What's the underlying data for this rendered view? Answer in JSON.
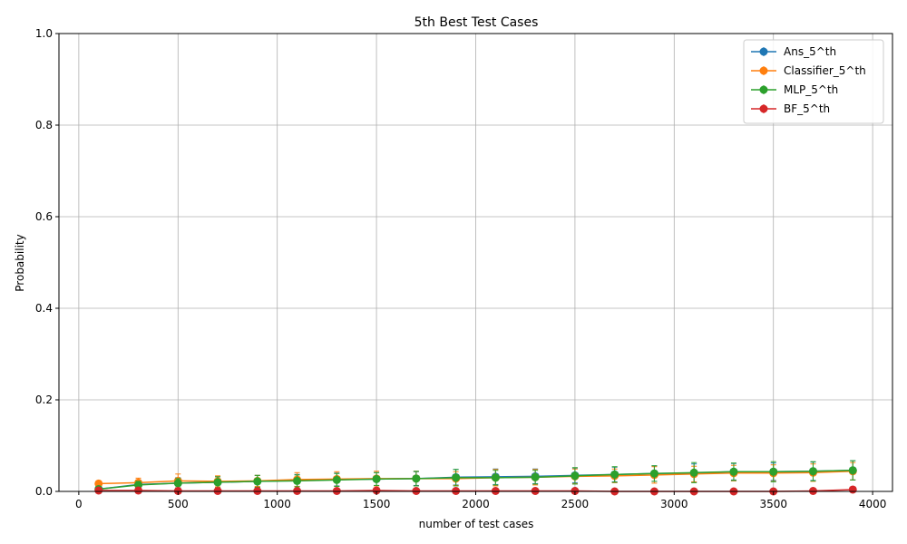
{
  "chart_data": {
    "type": "line",
    "title": "5th Best Test Cases",
    "xlabel": "number of test cases",
    "ylabel": "Probability",
    "xlim": [
      -100,
      4100
    ],
    "ylim": [
      0,
      1.0
    ],
    "xticks": [
      0,
      500,
      1000,
      1500,
      2000,
      2500,
      3000,
      3500,
      4000
    ],
    "yticks": [
      0.0,
      0.2,
      0.4,
      0.6,
      0.8,
      1.0
    ],
    "xtick_labels": [
      "0",
      "500",
      "1000",
      "1500",
      "2000",
      "2500",
      "3000",
      "3500",
      "4000"
    ],
    "ytick_labels": [
      "0.0",
      "0.2",
      "0.4",
      "0.6",
      "0.8",
      "1.0"
    ],
    "grid": true,
    "legend_position": "top-right",
    "x": [
      100,
      300,
      500,
      700,
      900,
      1100,
      1300,
      1500,
      1700,
      1900,
      2100,
      2300,
      2500,
      2700,
      2900,
      3100,
      3300,
      3500,
      3700,
      3900
    ],
    "series": [
      {
        "name": "Ans_5^th",
        "color": "#1f77b4",
        "values": [
          0.005,
          0.015,
          0.018,
          0.02,
          0.022,
          0.024,
          0.026,
          0.027,
          0.028,
          0.031,
          0.032,
          0.033,
          0.035,
          0.037,
          0.039,
          0.04,
          0.043,
          0.043,
          0.044,
          0.046
        ],
        "errors": [
          0.003,
          0.01,
          0.012,
          0.012,
          0.013,
          0.013,
          0.014,
          0.014,
          0.015,
          0.017,
          0.017,
          0.016,
          0.016,
          0.016,
          0.017,
          0.02,
          0.018,
          0.019,
          0.02,
          0.021
        ]
      },
      {
        "name": "Classifier_5^th",
        "color": "#ff7f0e",
        "values": [
          0.017,
          0.019,
          0.023,
          0.022,
          0.023,
          0.026,
          0.027,
          0.028,
          0.028,
          0.028,
          0.03,
          0.031,
          0.033,
          0.034,
          0.036,
          0.038,
          0.04,
          0.04,
          0.041,
          0.044
        ],
        "errors": [
          0.006,
          0.01,
          0.015,
          0.012,
          0.012,
          0.015,
          0.016,
          0.016,
          0.016,
          0.015,
          0.018,
          0.017,
          0.016,
          0.015,
          0.018,
          0.017,
          0.017,
          0.018,
          0.019,
          0.019
        ]
      },
      {
        "name": "MLP_5^th",
        "color": "#2ca02c",
        "values": [
          0.005,
          0.014,
          0.018,
          0.02,
          0.022,
          0.023,
          0.025,
          0.027,
          0.028,
          0.03,
          0.03,
          0.031,
          0.034,
          0.037,
          0.039,
          0.041,
          0.043,
          0.043,
          0.044,
          0.046
        ],
        "errors": [
          0.003,
          0.008,
          0.01,
          0.012,
          0.013,
          0.013,
          0.014,
          0.014,
          0.016,
          0.018,
          0.016,
          0.015,
          0.018,
          0.017,
          0.017,
          0.022,
          0.019,
          0.022,
          0.021,
          0.021
        ]
      },
      {
        "name": "BF_5^th",
        "color": "#d62728",
        "values": [
          0.002,
          0.002,
          0.001,
          0.001,
          0.001,
          0.001,
          0.001,
          0.002,
          0.001,
          0.001,
          0.001,
          0.001,
          0.001,
          0.0,
          0.0,
          0.0,
          0.0,
          0.0,
          0.001,
          0.004
        ],
        "errors": [
          0.002,
          0.002,
          0.001,
          0.001,
          0.001,
          0.001,
          0.001,
          0.002,
          0.001,
          0.004,
          0.001,
          0.001,
          0.001,
          0.0,
          0.0,
          0.0,
          0.0,
          0.0,
          0.001,
          0.004
        ]
      }
    ]
  }
}
